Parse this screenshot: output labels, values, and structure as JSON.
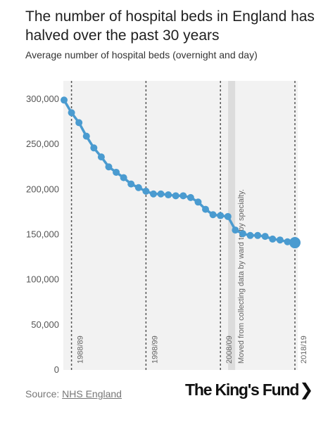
{
  "header": {
    "title": "The number of hospital beds in England has halved over the past 30 years",
    "subtitle": "Average number of hospital beds (overnight and day)"
  },
  "footer": {
    "source_prefix": "Source: ",
    "source_link": "NHS England",
    "logo": "The King's Fund",
    "logo_chevron": "❯"
  },
  "colors": {
    "line": "#4a9bd0",
    "plot_bg": "#f2f2f2",
    "band": "#dcdcdc",
    "marker_line": "#555555"
  },
  "chart_data": {
    "type": "line",
    "title": "The number of hospital beds in England has halved over the past 30 years",
    "subtitle": "Average number of hospital beds (overnight and day)",
    "ylim": [
      0,
      300000
    ],
    "yticks": [
      0,
      50000,
      100000,
      150000,
      200000,
      250000,
      300000
    ],
    "ytick_labels": [
      "0",
      "50,000",
      "100,000",
      "150,000",
      "200,000",
      "250,000",
      "300,000"
    ],
    "grid": false,
    "series": [
      {
        "values": [
          299000,
          285000,
          274000,
          259000,
          246000,
          236000,
          225000,
          219000,
          213000,
          206000,
          202000,
          198000,
          195000,
          195000,
          194000,
          193000,
          193000,
          191000,
          186000,
          178000,
          172000,
          171000,
          170000,
          155000,
          151000,
          149000,
          149000,
          148000,
          145000,
          144000,
          142000,
          141000
        ]
      }
    ],
    "period_markers": [
      {
        "label": "1988/89",
        "index": 1
      },
      {
        "label": "1998/99",
        "index": 11
      },
      {
        "label": "2008/09",
        "index": 21
      },
      {
        "label": "2018/19",
        "index": 31
      }
    ],
    "annotation": {
      "text": "Moved from collecting data by ward to by specialty.",
      "between_index": [
        22,
        23
      ]
    }
  }
}
